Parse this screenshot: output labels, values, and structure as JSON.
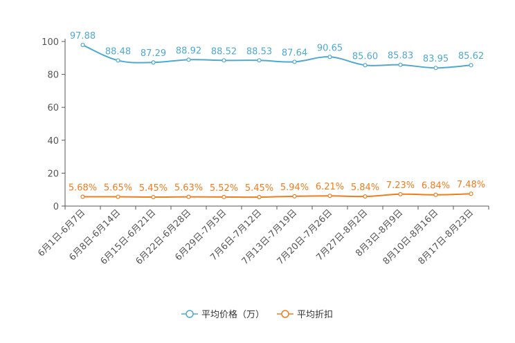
{
  "chart_data": {
    "type": "line",
    "title": "",
    "xlabel": "",
    "ylabel": "",
    "ylim": [
      0,
      100
    ],
    "yticks": [
      0,
      20,
      40,
      60,
      80,
      100
    ],
    "grid": false,
    "legend_position": "bottom-center",
    "categories": [
      "6月1日-6月7日",
      "6月8日-6月14日",
      "6月15日-6月21日",
      "6月22日-6月28日",
      "6月29日-7月5日",
      "7月6日-7月12日",
      "7月13日-7月19日",
      "7月20日-7月26日",
      "7月27日-8月2日",
      "8月3日-8月9日",
      "8月10日-8月16日",
      "8月17日-8月23日"
    ],
    "series": [
      {
        "name": "平均价格（万）",
        "color": "#4fa8d1",
        "values": [
          97.88,
          88.48,
          87.29,
          88.92,
          88.52,
          88.53,
          87.64,
          90.65,
          85.6,
          85.83,
          83.95,
          85.62
        ],
        "labels": [
          "97.88",
          "88.48",
          "87.29",
          "88.92",
          "88.52",
          "88.53",
          "87.64",
          "90.65",
          "85.60",
          "85.83",
          "83.95",
          "85.62"
        ]
      },
      {
        "name": "平均折扣",
        "color": "#f07c1e",
        "values": [
          5.68,
          5.65,
          5.45,
          5.63,
          5.52,
          5.45,
          5.94,
          6.21,
          5.84,
          7.23,
          6.84,
          7.48
        ],
        "labels": [
          "5.68%",
          "5.65%",
          "5.45%",
          "5.63%",
          "5.52%",
          "5.45%",
          "5.94%",
          "6.21%",
          "5.84%",
          "7.23%",
          "6.84%",
          "7.48%"
        ]
      }
    ]
  }
}
